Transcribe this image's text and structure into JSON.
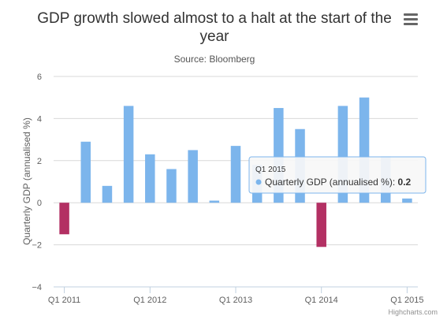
{
  "chart_data": {
    "type": "bar",
    "title_lines": [
      "GDP growth slowed almost to a halt at the start of the",
      "year"
    ],
    "subtitle": "Source: Bloomberg",
    "ylabel": "Quarterly GDP (annualised %)",
    "xlabel": "",
    "ylim": [
      -4,
      6
    ],
    "yticks": [
      -4,
      -2,
      0,
      2,
      4,
      6
    ],
    "grid": true,
    "legend": "none",
    "categories": [
      "Q1 2011",
      "Q2 2011",
      "Q3 2011",
      "Q4 2011",
      "Q1 2012",
      "Q2 2012",
      "Q3 2012",
      "Q4 2012",
      "Q1 2013",
      "Q2 2013",
      "Q3 2013",
      "Q4 2013",
      "Q1 2014",
      "Q2 2014",
      "Q3 2014",
      "Q4 2014",
      "Q1 2015"
    ],
    "xtick_labels": [
      "Q1 2011",
      "Q1 2012",
      "Q1 2013",
      "Q1 2014",
      "Q1 2015"
    ],
    "series": [
      {
        "name": "Quarterly GDP (annualised %)",
        "values": [
          -1.5,
          2.9,
          0.8,
          4.6,
          2.3,
          1.6,
          2.5,
          0.1,
          2.7,
          1.8,
          4.5,
          3.5,
          -2.1,
          4.6,
          5.0,
          2.2,
          0.2
        ]
      }
    ],
    "colors": {
      "positive": "#7cb5ec",
      "negative": "#b33063"
    },
    "tooltip": {
      "header": "Q1 2015",
      "series": "Quarterly GDP (annualised %)",
      "value": "0.2"
    },
    "credits": "Highcharts.com"
  }
}
